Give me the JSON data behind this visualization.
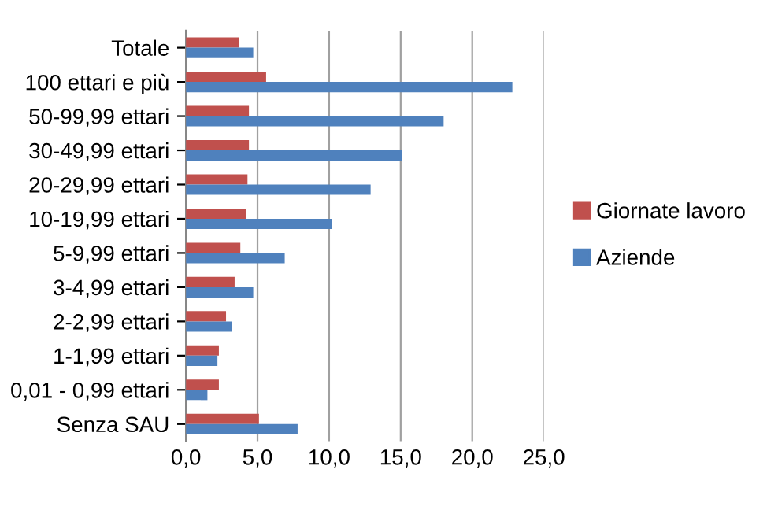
{
  "chart_data": {
    "type": "bar",
    "orientation": "horizontal",
    "categories": [
      "Totale",
      "100 ettari e più",
      "50-99,99 ettari",
      "30-49,99 ettari",
      "20-29,99 ettari",
      "10-19,99 ettari",
      "5-9,99 ettari",
      "3-4,99 ettari",
      "2-2,99 ettari",
      "1-1,99 ettari",
      "0,01 - 0,99 ettari",
      "Senza SAU"
    ],
    "series": [
      {
        "name": "Giornate lavoro",
        "color": "#c0504d",
        "values": [
          3.7,
          5.6,
          4.4,
          4.4,
          4.3,
          4.2,
          3.8,
          3.4,
          2.8,
          2.3,
          2.3,
          5.1
        ]
      },
      {
        "name": "Aziende",
        "color": "#4f81bd",
        "values": [
          4.7,
          22.8,
          18.0,
          15.1,
          12.9,
          10.2,
          6.9,
          4.7,
          3.2,
          2.2,
          1.5,
          7.8
        ]
      }
    ],
    "xlim": [
      0,
      25
    ],
    "xticks": [
      {
        "value": 0,
        "label": "0,0"
      },
      {
        "value": 5,
        "label": "5,0"
      },
      {
        "value": 10,
        "label": "10,0"
      },
      {
        "value": 15,
        "label": "15,0"
      },
      {
        "value": 20,
        "label": "20,0"
      },
      {
        "value": 25,
        "label": "25,0"
      }
    ],
    "grid": "x",
    "legend": "right"
  }
}
